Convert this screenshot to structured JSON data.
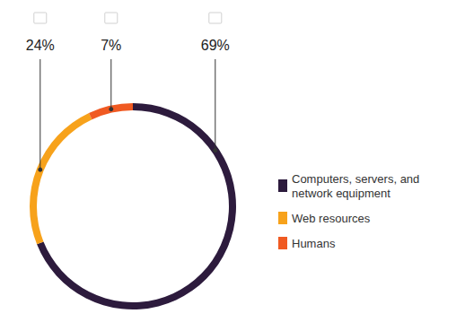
{
  "chart_data": {
    "type": "pie",
    "categories": [
      "Computers, servers, and network equipment",
      "Web resources",
      "Humans"
    ],
    "values": [
      69,
      24,
      7
    ],
    "value_labels": [
      "69%",
      "24%",
      "7%"
    ],
    "colors": [
      "#2d1b3d",
      "#f7a21b",
      "#f05a22"
    ],
    "data_labels": true,
    "legend": "right"
  }
}
